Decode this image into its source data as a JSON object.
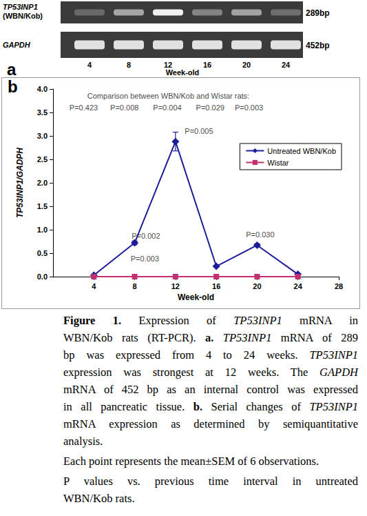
{
  "gel": {
    "panel": "a",
    "rows": [
      {
        "label": [
          {
            "text": "TP53INP1",
            "style": "italic"
          },
          {
            "text": "(WBN/Kob)"
          }
        ],
        "size": "289bp"
      },
      {
        "label": [
          {
            "text": "GAPDH",
            "style": "italic"
          }
        ],
        "size": "452bp"
      }
    ],
    "lanes": [
      4,
      8,
      12,
      16,
      20,
      24
    ],
    "lane_title": "Week-old"
  },
  "chart_data": {
    "type": "line",
    "panel": "b",
    "x": [
      4,
      8,
      12,
      16,
      20,
      24
    ],
    "xlim": [
      0,
      28
    ],
    "xticks": [
      4,
      8,
      12,
      16,
      20,
      24,
      28
    ],
    "x_label": "Week-old",
    "y_label": "TP53INP1/GADPH",
    "ylim": [
      0,
      4
    ],
    "yticks": [
      {
        "value": 0,
        "label": "0.0"
      },
      0.5,
      {
        "value": 1,
        "label": "1.0"
      },
      1.5,
      {
        "value": 2,
        "label": "2.0"
      },
      2.5,
      {
        "value": 3,
        "label": "3.0"
      },
      3.5,
      {
        "value": 4,
        "label": "4.0"
      }
    ],
    "grid": false,
    "legend": "upper right",
    "series": [
      {
        "name": "Untreated WBN/Kob",
        "color": "#1c1c99",
        "marker": "diamond",
        "values": [
          0.03,
          0.72,
          2.88,
          0.22,
          0.67,
          0.05
        ],
        "errors": [
          0.01,
          0.04,
          0.2,
          0.02,
          0.03,
          0.01
        ]
      },
      {
        "name": "Wistar",
        "color": "#c2306f",
        "marker": "square",
        "values": [
          0,
          0,
          0,
          0,
          0,
          0
        ]
      }
    ],
    "annotations": [
      {
        "text": "Comparison between WBN/Kob and Wistar rats:",
        "x": 11.3,
        "y": 3.86
      },
      {
        "text": "P=0.423",
        "x": 3,
        "y": 3.6
      },
      {
        "text": "P=0.008",
        "x": 7,
        "y": 3.6
      },
      {
        "text": "P=0.004",
        "x": 11.2,
        "y": 3.6
      },
      {
        "text": "P=0.029",
        "x": 15.4,
        "y": 3.6
      },
      {
        "text": "P=0.003",
        "x": 19.2,
        "y": 3.6
      },
      {
        "text": "P=0.005",
        "x": 14.3,
        "y": 3.1
      },
      {
        "text": "P=0.002",
        "x": 9.1,
        "y": 0.87
      },
      {
        "text": "P=0.003",
        "x": 9.0,
        "y": 0.38
      },
      {
        "text": "P=0.030",
        "x": 20.3,
        "y": 0.9
      }
    ]
  },
  "caption": [
    [
      [
        {
          "text": "Figure 1.",
          "style": "bold"
        },
        {
          "text": " Expression of "
        },
        {
          "text": "TP53INP1",
          "style": "italic"
        },
        {
          "text": " mRNA in"
        }
      ],
      [
        {
          "text": "WBN/Kob rats (RT-PCR). "
        },
        {
          "text": "a.",
          "style": "bold"
        },
        {
          "text": " TP53INP1",
          "style": "italic"
        },
        {
          "text": " mRNA of 289"
        }
      ],
      [
        {
          "text": "bp was expressed from 4 to 24 weeks. "
        },
        {
          "text": "TP53INP1",
          "style": "italic"
        }
      ],
      [
        {
          "text": "expression was strongest at 12 weeks. The "
        },
        {
          "text": "GAPDH",
          "style": "italic"
        }
      ],
      [
        {
          "text": "mRNA of 452 bp as an internal control was expressed"
        }
      ],
      [
        {
          "text": "in all pancreatic tissue. "
        },
        {
          "text": "b.",
          "style": "bold"
        },
        {
          "text": " Serial changes of "
        },
        {
          "text": "TP53INP1",
          "style": "italic"
        }
      ],
      [
        {
          "text": "mRNA expression as determined by semiquantitative"
        }
      ],
      [
        {
          "text": "analysis."
        }
      ]
    ],
    [
      [
        {
          "text": "Each point represents the mean±SEM of 6 observations."
        }
      ]
    ],
    [
      [
        {
          "text": "P values vs. previous time interval in untreated"
        }
      ],
      [
        {
          "text": "WBN/Kob rats."
        }
      ]
    ]
  ]
}
